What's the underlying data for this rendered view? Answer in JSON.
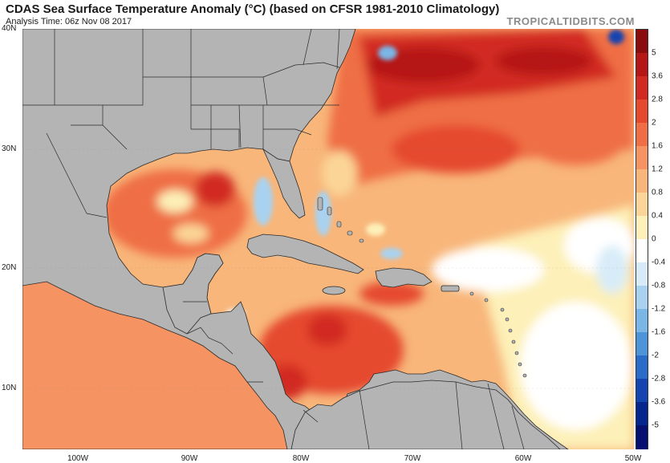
{
  "header": {
    "title": "CDAS Sea Surface Temperature Anomaly (°C) (based on CFSR 1981-2010 Climatology)",
    "analysis_time": "Analysis Time: 06z Nov 08 2017",
    "brand": "TROPICALTIDBITS.COM"
  },
  "map": {
    "lat_labels": [
      "40N",
      "30N",
      "20N",
      "10N"
    ],
    "lon_labels": [
      "100W",
      "90W",
      "80W",
      "70W",
      "60W",
      "50W"
    ],
    "land_color": "#b4b4b4",
    "border_color": "#2a2a2a"
  },
  "colorbar": {
    "labels": [
      "5",
      "3.6",
      "2.8",
      "2",
      "1.6",
      "1.2",
      "0.8",
      "0.4",
      "0",
      "-0.4",
      "-0.8",
      "-1.2",
      "-1.6",
      "-2",
      "-2.8",
      "-3.6",
      "-5"
    ],
    "colors": [
      "#8b0c0c",
      "#b51616",
      "#d22a20",
      "#e54a2e",
      "#ef6e45",
      "#f59462",
      "#f8b67a",
      "#fbd597",
      "#fdf0b8",
      "#ffffff",
      "#d7ecf8",
      "#a9d2f0",
      "#7ab6e6",
      "#4e94d8",
      "#2a6cc8",
      "#1444b0",
      "#06268e",
      "#061070"
    ]
  }
}
